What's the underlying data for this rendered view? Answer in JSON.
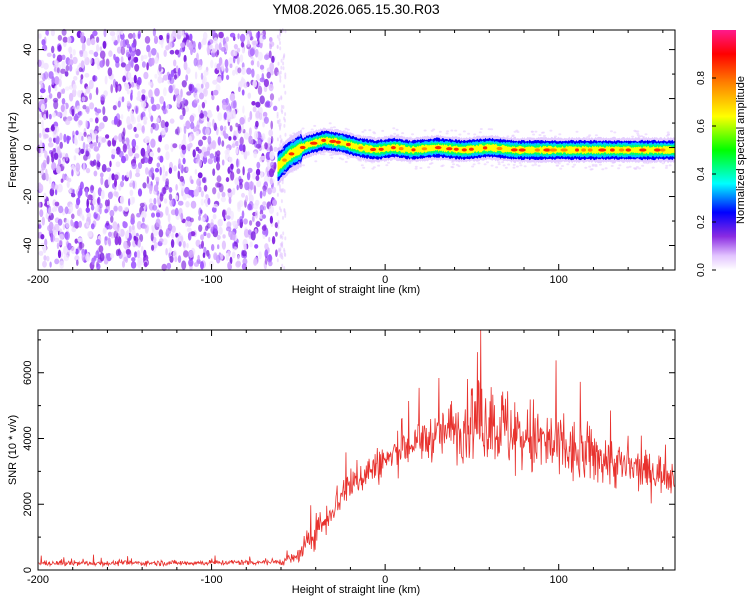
{
  "title": "YM08.2026.065.15.30.R03",
  "colors": {
    "snr_line": "#e8322e",
    "axis": "#000000",
    "noise": "#8a2be2"
  },
  "chart_data": [
    {
      "type": "heatmap",
      "title": "YM08.2026.065.15.30.R03",
      "xlabel": "Height of straight line (km)",
      "ylabel": "Frequency (Hz)",
      "xlim": [
        -200,
        167
      ],
      "ylim": [
        -50,
        48
      ],
      "x_ticks": [
        -200,
        -100,
        0,
        100
      ],
      "y_ticks": [
        -40,
        -20,
        0,
        20,
        40
      ],
      "noise_region_x": [
        -200,
        -62
      ],
      "signal_track": {
        "x": [
          -62,
          -55,
          -45,
          -35,
          -25,
          -15,
          -5,
          5,
          15,
          30,
          45,
          60,
          75,
          90,
          110,
          130,
          150,
          167
        ],
        "freq_hz": [
          -8,
          -3,
          1,
          3,
          2,
          0,
          -1,
          0,
          -1,
          0,
          -1,
          0,
          -1,
          -1,
          -1,
          -1,
          -1,
          -1
        ]
      },
      "colorbar": {
        "label": "Normalized spectral amplitude",
        "range": [
          0.0,
          1.0
        ],
        "ticks": [
          0.0,
          0.2,
          0.4,
          0.6,
          0.8
        ],
        "tick_labels": [
          "0.0",
          "0.2",
          "0.4",
          "0.6",
          "0.8"
        ]
      }
    },
    {
      "type": "line",
      "xlabel": "Height of straight line (km)",
      "ylabel": "SNR (10 * v/v)",
      "xlim": [
        -200,
        167
      ],
      "ylim": [
        0,
        7300
      ],
      "x_ticks": [
        -200,
        -100,
        0,
        100
      ],
      "y_ticks": [
        0,
        2000,
        4000,
        6000
      ],
      "series": [
        {
          "name": "SNR",
          "envelope_x": [
            -200,
            -100,
            -60,
            -50,
            -45,
            -40,
            -35,
            -30,
            -25,
            -20,
            -10,
            0,
            10,
            20,
            30,
            40,
            50,
            60,
            70,
            80,
            90,
            100,
            110,
            120,
            130,
            140,
            150,
            167
          ],
          "envelope_mean": [
            200,
            220,
            250,
            400,
            800,
            1200,
            1500,
            1900,
            2300,
            2600,
            3000,
            3300,
            3700,
            3900,
            4100,
            4300,
            4500,
            4500,
            4300,
            4000,
            3900,
            3700,
            3500,
            3500,
            3300,
            3100,
            3000,
            2900
          ],
          "envelope_amp": [
            80,
            80,
            100,
            250,
            400,
            450,
            500,
            550,
            550,
            550,
            550,
            550,
            600,
            650,
            700,
            900,
            1200,
            1200,
            1300,
            1300,
            1200,
            1100,
            1000,
            900,
            800,
            700,
            600,
            600
          ]
        }
      ]
    }
  ]
}
